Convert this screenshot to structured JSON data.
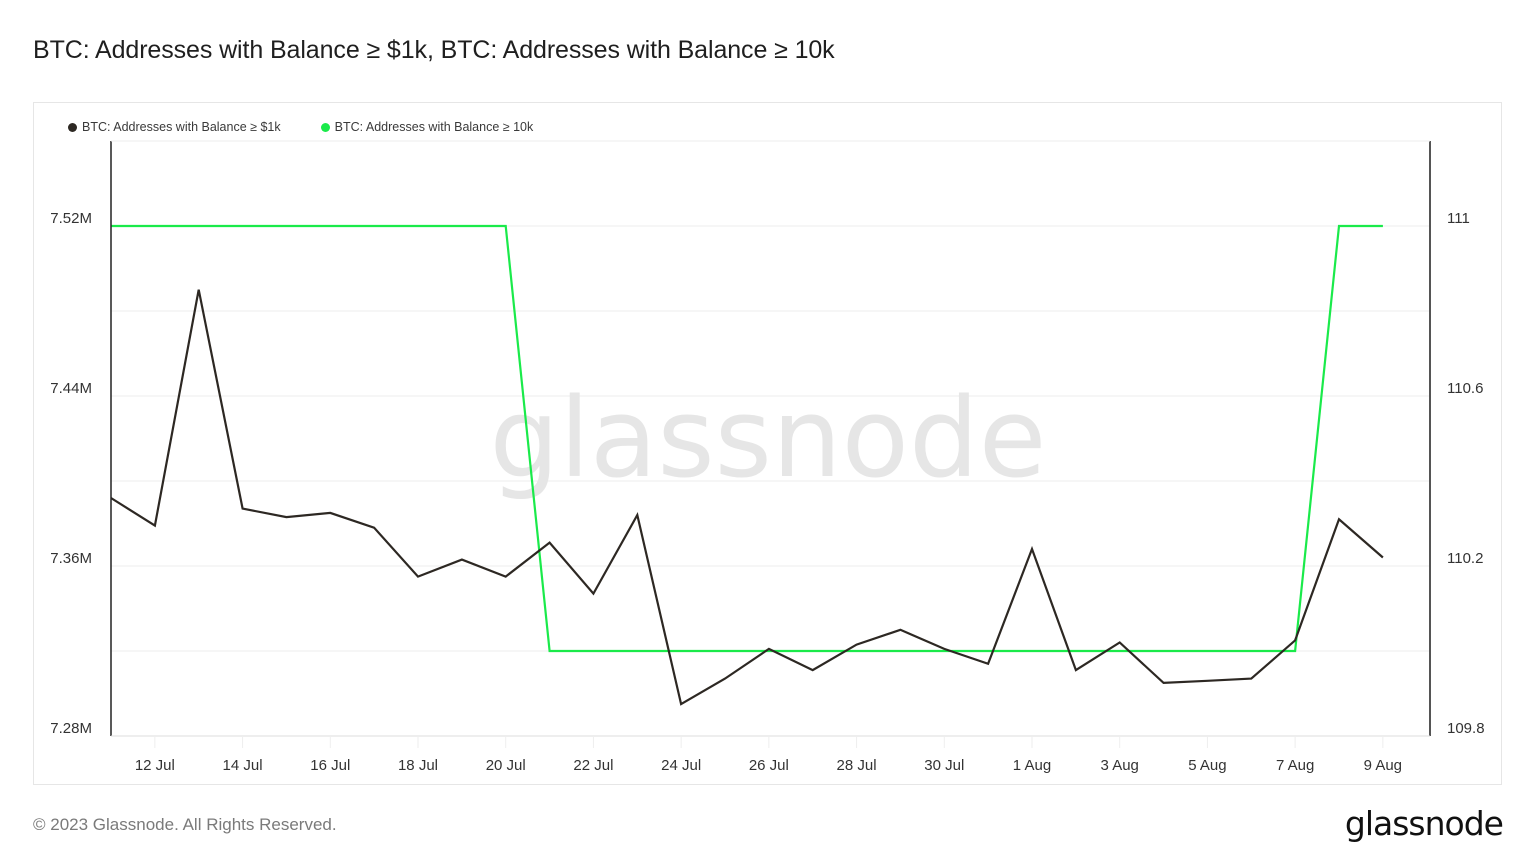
{
  "header": {
    "title": "BTC: Addresses with Balance ≥ $1k, BTC: Addresses with Balance ≥ 10k"
  },
  "legend": {
    "items": [
      {
        "label": "BTC: Addresses with Balance ≥ $1k",
        "color": "#2d2823"
      },
      {
        "label": "BTC: Addresses with Balance ≥ 10k",
        "color": "#1aea4a"
      }
    ]
  },
  "watermark": "glassnode",
  "footer": {
    "copyright": "© 2023 Glassnode. All Rights Reserved.",
    "logo": "glassnode"
  },
  "chart_data": {
    "type": "line",
    "title": "BTC: Addresses with Balance ≥ $1k, BTC: Addresses with Balance ≥ 10k",
    "xlabel": "",
    "ylabel_left": "",
    "ylabel_right": "",
    "x": [
      "11 Jul",
      "12 Jul",
      "13 Jul",
      "14 Jul",
      "15 Jul",
      "16 Jul",
      "17 Jul",
      "18 Jul",
      "19 Jul",
      "20 Jul",
      "21 Jul",
      "22 Jul",
      "23 Jul",
      "24 Jul",
      "25 Jul",
      "26 Jul",
      "27 Jul",
      "28 Jul",
      "29 Jul",
      "30 Jul",
      "31 Jul",
      "1 Aug",
      "2 Aug",
      "3 Aug",
      "4 Aug",
      "5 Aug",
      "6 Aug",
      "7 Aug",
      "8 Aug",
      "9 Aug"
    ],
    "x_tick_labels": [
      "12 Jul",
      "14 Jul",
      "16 Jul",
      "18 Jul",
      "20 Jul",
      "22 Jul",
      "24 Jul",
      "26 Jul",
      "28 Jul",
      "30 Jul",
      "1 Aug",
      "3 Aug",
      "5 Aug",
      "7 Aug",
      "9 Aug"
    ],
    "series": [
      {
        "name": "BTC: Addresses with Balance ≥ $1k",
        "axis": "left",
        "color": "#2d2823",
        "unit": "M",
        "values": [
          7.392,
          7.379,
          7.49,
          7.387,
          7.383,
          7.385,
          7.378,
          7.355,
          7.363,
          7.355,
          7.371,
          7.347,
          7.384,
          7.295,
          7.307,
          7.321,
          7.311,
          7.323,
          7.33,
          7.321,
          7.314,
          7.368,
          7.311,
          7.324,
          7.305,
          7.306,
          7.307,
          7.325,
          7.382,
          7.364
        ]
      },
      {
        "name": "BTC: Addresses with Balance ≥ 10k",
        "axis": "right",
        "color": "#1aea4a",
        "values": [
          111,
          111,
          111,
          111,
          111,
          111,
          111,
          111,
          111,
          111,
          110,
          110,
          110,
          110,
          110,
          110,
          110,
          110,
          110,
          110,
          110,
          110,
          110,
          110,
          110,
          110,
          110,
          110,
          111,
          111
        ]
      }
    ],
    "y_left": {
      "ticks": [
        "7.28M",
        "7.36M",
        "7.44M",
        "7.52M"
      ],
      "tick_values": [
        7.28,
        7.36,
        7.44,
        7.52
      ],
      "ylim": [
        7.28,
        7.56
      ]
    },
    "y_right": {
      "ticks": [
        "109.8",
        "110.2",
        "110.6",
        "111"
      ],
      "tick_values": [
        109.8,
        110.2,
        110.6,
        111
      ],
      "ylim": [
        109.8,
        111.2
      ]
    },
    "grid": true,
    "legend_position": "top-left"
  }
}
